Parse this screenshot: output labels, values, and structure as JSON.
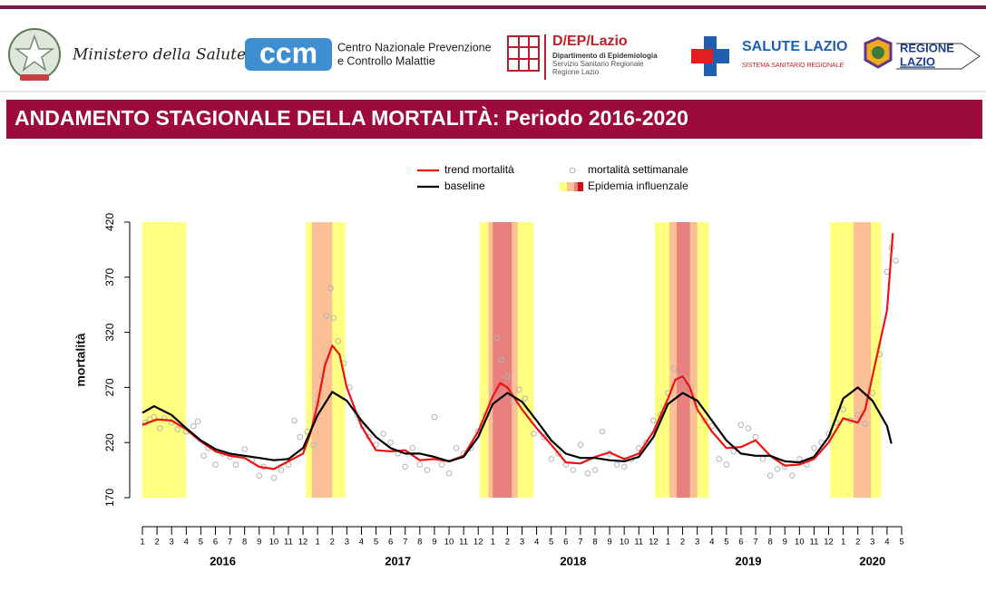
{
  "header": {
    "ministero": "Ministero della Salute",
    "ccm": {
      "logo": "ccm",
      "line1": "Centro Nazionale Prevenzione",
      "line2": "e Controllo Malattie"
    },
    "dep": {
      "logo": "D/EP/Lazio",
      "line1": "Dipartimento di Epidemiologia",
      "line2": "Servizio Sanitario Regionale",
      "line3": "Regione Lazio"
    },
    "salute": {
      "title": "SALUTE LAZIO",
      "subtitle": "SISTEMA SANITARIO REGIONALE"
    },
    "regione": {
      "line1": "REGIONE",
      "line2": "LAZIO"
    }
  },
  "banner": {
    "title": "ANDAMENTO STAGIONALE DELLA MORTALITÀ: Periodo 2016-2020"
  },
  "chart_data": {
    "type": "line",
    "y_label": "mortalità",
    "ylim": [
      170,
      420
    ],
    "yticks": [
      170,
      220,
      270,
      320,
      370,
      420
    ],
    "xlim": [
      0,
      52
    ],
    "xticks": [
      {
        "value": 0,
        "label": "1"
      },
      {
        "value": 1,
        "label": "2"
      },
      {
        "value": 2,
        "label": "3"
      },
      {
        "value": 3,
        "label": "4"
      },
      {
        "value": 4,
        "label": "5"
      },
      {
        "value": 5,
        "label": "6"
      },
      {
        "value": 6,
        "label": "7"
      },
      {
        "value": 7,
        "label": "8"
      },
      {
        "value": 8,
        "label": "9"
      },
      {
        "value": 9,
        "label": "10"
      },
      {
        "value": 10,
        "label": "11"
      },
      {
        "value": 11,
        "label": "12"
      },
      {
        "value": 12,
        "label": "1"
      },
      {
        "value": 13,
        "label": "2"
      },
      {
        "value": 14,
        "label": "3"
      },
      {
        "value": 15,
        "label": "4"
      },
      {
        "value": 16,
        "label": "5"
      },
      {
        "value": 17,
        "label": "6"
      },
      {
        "value": 18,
        "label": "7"
      },
      {
        "value": 19,
        "label": "8"
      },
      {
        "value": 20,
        "label": "9"
      },
      {
        "value": 21,
        "label": "10"
      },
      {
        "value": 22,
        "label": "11"
      },
      {
        "value": 23,
        "label": "12"
      },
      {
        "value": 24,
        "label": "1"
      },
      {
        "value": 25,
        "label": "2"
      },
      {
        "value": 26,
        "label": "3"
      },
      {
        "value": 27,
        "label": "4"
      },
      {
        "value": 28,
        "label": "5"
      },
      {
        "value": 29,
        "label": "6"
      },
      {
        "value": 30,
        "label": "7"
      },
      {
        "value": 31,
        "label": "8"
      },
      {
        "value": 32,
        "label": "9"
      },
      {
        "value": 33,
        "label": "10"
      },
      {
        "value": 34,
        "label": "11"
      },
      {
        "value": 35,
        "label": "12"
      },
      {
        "value": 36,
        "label": "1"
      },
      {
        "value": 37,
        "label": "2"
      },
      {
        "value": 38,
        "label": "3"
      },
      {
        "value": 39,
        "label": "4"
      },
      {
        "value": 40,
        "label": "5"
      },
      {
        "value": 41,
        "label": "6"
      },
      {
        "value": 42,
        "label": "7"
      },
      {
        "value": 43,
        "label": "8"
      },
      {
        "value": 44,
        "label": "9"
      },
      {
        "value": 45,
        "label": "10"
      },
      {
        "value": 46,
        "label": "11"
      },
      {
        "value": 47,
        "label": "12"
      },
      {
        "value": 48,
        "label": "1"
      },
      {
        "value": 49,
        "label": "2"
      },
      {
        "value": 50,
        "label": "3"
      },
      {
        "value": 51,
        "label": "4"
      },
      {
        "value": 52,
        "label": "5"
      }
    ],
    "year_labels": [
      "2016",
      "2017",
      "2018",
      "2019",
      "2020"
    ],
    "bands_label": "Epidemia influenzale",
    "bands": [
      {
        "color": "#ffff80",
        "ranges": [
          [
            0,
            3.0
          ],
          [
            11.2,
            13.9
          ],
          [
            23.1,
            26.8
          ],
          [
            35.1,
            38.8
          ],
          [
            47.1,
            50.6
          ]
        ]
      },
      {
        "color": "#fbc096",
        "ranges": [
          [
            11.6,
            13.0
          ],
          [
            23.7,
            25.7
          ],
          [
            36.1,
            38.0
          ],
          [
            48.7,
            49.9
          ]
        ]
      },
      {
        "color": "#e88080",
        "ranges": [
          [
            24.0,
            25.3
          ],
          [
            36.6,
            37.5
          ]
        ]
      }
    ],
    "series": [
      {
        "name": "mortalità settimanale",
        "type": "scatter",
        "color": "#b4b4b4",
        "x": [
          0.2,
          0.5,
          0.8,
          1.2,
          1.5,
          2,
          2.4,
          3,
          3.5,
          3.8,
          4.2,
          4.5,
          5,
          5.5,
          6,
          6.4,
          7,
          7.5,
          8,
          8.3,
          9,
          9.5,
          10,
          10.4,
          10.8,
          11.3,
          11.7,
          12,
          12.3,
          12.6,
          12.9,
          13.1,
          13.4,
          13.8,
          14.2,
          14.7,
          15.1,
          15.5,
          16,
          16.5,
          17,
          17.5,
          18,
          18.5,
          19,
          19.5,
          20,
          20.5,
          21,
          21.5,
          22,
          22.5,
          23,
          23.5,
          24,
          24.3,
          24.6,
          25,
          25.4,
          25.8,
          26.2,
          26.8,
          27.5,
          28,
          28.5,
          29,
          29.5,
          30,
          30.5,
          31,
          31.5,
          32,
          32.5,
          33,
          33.5,
          34,
          34.5,
          35,
          35.5,
          36,
          36.4,
          36.8,
          37.2,
          37.6,
          38,
          38.5,
          39,
          39.5,
          40,
          40.5,
          41,
          41.5,
          42,
          42.5,
          43,
          43.5,
          44,
          44.5,
          45,
          45.5,
          46,
          46.5,
          47,
          47.5,
          48,
          48.5,
          49,
          49.5,
          50,
          50.5,
          51,
          51.3,
          51.6
        ],
        "values": [
          238,
          241,
          243,
          233,
          242,
          238,
          232,
          230,
          235,
          239,
          208,
          215,
          200,
          210,
          207,
          200,
          214,
          204,
          190,
          198,
          188,
          195,
          200,
          240,
          225,
          230,
          218,
          255,
          280,
          335,
          360,
          333,
          312,
          292,
          270,
          245,
          235,
          225,
          218,
          228,
          220,
          210,
          198,
          215,
          200,
          195,
          243,
          200,
          192,
          215,
          210,
          215,
          230,
          245,
          265,
          315,
          295,
          280,
          257,
          268,
          260,
          228,
          225,
          205,
          210,
          200,
          195,
          218,
          192,
          195,
          230,
          210,
          200,
          198,
          205,
          215,
          220,
          240,
          245,
          265,
          287,
          280,
          278,
          270,
          255,
          240,
          235,
          205,
          200,
          212,
          236,
          233,
          225,
          205,
          190,
          196,
          198,
          190,
          205,
          200,
          215,
          220,
          228,
          238,
          250,
          240,
          245,
          237,
          265,
          300,
          375,
          397,
          385
        ]
      },
      {
        "name": "trend mortalità",
        "type": "line",
        "color": "#ee1111",
        "x": [
          0,
          1,
          2,
          3,
          4,
          5,
          6,
          7,
          8,
          9,
          10,
          11,
          11.5,
          12,
          12.5,
          13,
          13.5,
          14,
          15,
          16,
          17,
          18,
          19,
          20,
          21,
          22,
          23,
          24,
          24.5,
          25,
          26,
          27,
          28,
          29,
          30,
          31,
          32,
          33,
          34,
          35,
          36,
          36.5,
          37,
          37.5,
          38,
          39,
          40,
          41,
          42,
          43,
          44,
          45,
          46,
          47,
          48,
          49,
          49.5,
          50,
          51,
          51.4
        ],
        "values": [
          236,
          241,
          240,
          232,
          221,
          212,
          208,
          206,
          198,
          196,
          203,
          210,
          228,
          255,
          290,
          308,
          300,
          270,
          235,
          213,
          212,
          213,
          204,
          205,
          203,
          208,
          230,
          262,
          274,
          270,
          250,
          233,
          218,
          202,
          201,
          207,
          211,
          205,
          210,
          230,
          260,
          277,
          280,
          270,
          250,
          230,
          215,
          216,
          222,
          208,
          199,
          200,
          205,
          220,
          242,
          238,
          250,
          280,
          340,
          410
        ]
      },
      {
        "name": "baseline",
        "type": "line",
        "color": "#000000",
        "x": [
          0,
          0.8,
          2,
          3,
          4,
          5,
          6,
          7,
          8,
          9,
          10,
          11,
          12,
          13,
          14,
          15,
          16,
          17,
          18,
          19,
          20,
          21,
          22,
          23,
          24,
          25,
          26,
          27,
          28,
          29,
          30,
          31,
          32,
          33,
          34,
          35,
          36,
          37,
          38,
          39,
          40,
          41,
          42,
          43,
          44,
          45,
          46,
          47,
          48,
          49,
          50,
          51,
          51.3
        ],
        "values": [
          247,
          253,
          245,
          233,
          222,
          214,
          210,
          208,
          206,
          204,
          205,
          215,
          245,
          266,
          258,
          240,
          225,
          215,
          210,
          210,
          207,
          203,
          207,
          225,
          255,
          265,
          257,
          240,
          222,
          210,
          206,
          206,
          204,
          203,
          207,
          225,
          255,
          265,
          258,
          240,
          222,
          210,
          208,
          208,
          203,
          202,
          207,
          225,
          260,
          270,
          258,
          235,
          219
        ]
      }
    ]
  }
}
